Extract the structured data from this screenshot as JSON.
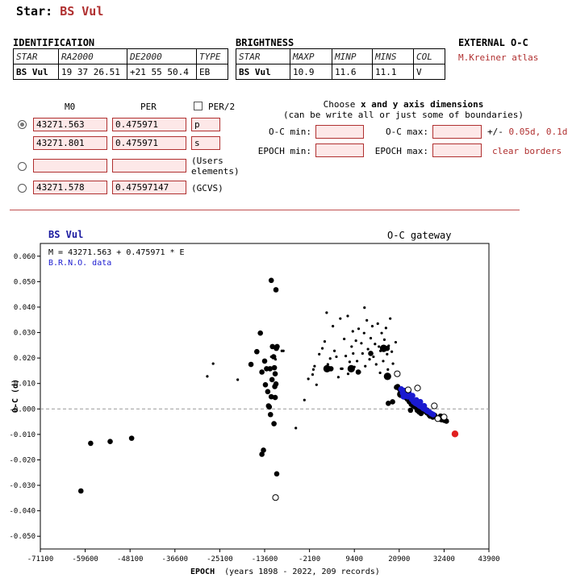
{
  "header": {
    "prefix": "Star:",
    "star_name": "BS Vul"
  },
  "identification": {
    "title": "IDENTIFICATION",
    "headers": [
      "STAR",
      "RA2000",
      "DE2000",
      "TYPE"
    ],
    "values": [
      "BS Vul",
      "19 37 26.51",
      "+21 55 50.4",
      "EB"
    ]
  },
  "brightness": {
    "title": "BRIGHTNESS",
    "headers": [
      "STAR",
      "MAXP",
      "MINP",
      "MINS",
      "COL"
    ],
    "values": [
      "BS Vul",
      "10.9",
      "11.6",
      "11.1",
      "V"
    ]
  },
  "external": {
    "title": "EXTERNAL O-C",
    "link": "M.Kreiner atlas"
  },
  "elements": {
    "col_m0": "M0",
    "col_per": "PER",
    "per2_label": "PER/2",
    "per2_checked": false,
    "selected_row": 0,
    "rows": [
      {
        "m0": "43271.563",
        "per": "0.475971",
        "tag": "p",
        "tag_is_field": true,
        "has_radio": true
      },
      {
        "m0": "43271.801",
        "per": "0.475971",
        "tag": "s",
        "tag_is_field": true,
        "has_radio": false
      },
      {
        "m0": "",
        "per": "",
        "tag": "(Users elements)",
        "tag_is_field": false,
        "has_radio": true
      },
      {
        "m0": "43271.578",
        "per": "0.47597147",
        "tag": "(GCVS)",
        "tag_is_field": false,
        "has_radio": true
      }
    ]
  },
  "axis_form": {
    "title_pre": "Choose ",
    "title_bold": "x and y axis dimensions",
    "subtitle": "(can be write all or just some of boundaries)",
    "oc_min_label": "O-C min:",
    "oc_max_label": "O-C max:",
    "epoch_min_label": "EPOCH min:",
    "epoch_max_label": "EPOCH max:",
    "oc_min": "",
    "oc_max": "",
    "epoch_min": "",
    "epoch_max": "",
    "pm_label": "+/-",
    "pm_opt1": "0.05d",
    "pm_sep": ",",
    "pm_opt2": "0.1d",
    "clear_label": "clear borders"
  },
  "plot": {
    "star": "BS Vul",
    "gateway": "O-C gateway",
    "formula": "M = 43271.563 + 0.475971 * E",
    "source": "B.R.N.O. data",
    "ylabel": "O-C (d)",
    "xlabel_bold": "EPOCH",
    "xlabel_rest": "(years 1898 - 2022, 209 records)"
  },
  "chart_data": {
    "type": "scatter",
    "xlim": [
      -71100,
      43900
    ],
    "ylim": [
      -0.055,
      0.065
    ],
    "xticks": [
      -71100,
      -59600,
      -48100,
      -36600,
      -25100,
      -13600,
      -2100,
      9400,
      20900,
      32400,
      43900
    ],
    "xtick_labels": [
      "-71100",
      "-59600",
      "-48100",
      "-36600",
      "-25100",
      "-13600",
      "-2100",
      "9400",
      "20900",
      "32400",
      "43900"
    ],
    "yticks": [
      -0.05,
      -0.04,
      -0.03,
      -0.02,
      -0.01,
      0.0,
      0.01,
      0.02,
      0.03,
      0.04,
      0.05,
      0.06
    ],
    "ytick_labels": [
      "-0.050",
      "-0.040",
      "-0.030",
      "-0.020",
      "-0.010",
      "-0.000",
      "0.010",
      "0.020",
      "0.030",
      "0.040",
      "0.050",
      "0.060"
    ],
    "zero_line": true,
    "colors": {
      "black": "#000000",
      "blue": "#1a1ad0",
      "red": "#e02020"
    },
    "series": [
      {
        "style": "small-dot",
        "color": "black",
        "points": [
          [
            -26800,
            0.0178
          ],
          [
            -28300,
            0.0128
          ],
          [
            -20500,
            0.0115
          ],
          [
            -8800,
            0.0228
          ],
          [
            -5600,
            -0.0075
          ],
          [
            -3400,
            0.0035
          ],
          [
            -1300,
            0.0135
          ],
          [
            -1100,
            0.0155
          ],
          [
            -800,
            0.0168
          ],
          [
            400,
            0.0215
          ],
          [
            1200,
            0.0238
          ],
          [
            1800,
            0.0265
          ],
          [
            2300,
            0.0378
          ],
          [
            2600,
            0.0175
          ],
          [
            3200,
            0.0198
          ],
          [
            3900,
            0.0325
          ],
          [
            4300,
            0.0228
          ],
          [
            4800,
            0.0205
          ],
          [
            5300,
            0.0125
          ],
          [
            5800,
            0.0355
          ],
          [
            6300,
            0.0158
          ],
          [
            6800,
            0.0275
          ],
          [
            7200,
            0.0208
          ],
          [
            7700,
            0.0365
          ],
          [
            8200,
            0.0185
          ],
          [
            8700,
            0.0245
          ],
          [
            9100,
            0.0218
          ],
          [
            9400,
            0.0165
          ],
          [
            9800,
            0.0268
          ],
          [
            10100,
            0.0188
          ],
          [
            10500,
            0.0315
          ],
          [
            10800,
            0.0145
          ],
          [
            11200,
            0.0258
          ],
          [
            11500,
            0.0218
          ],
          [
            11900,
            0.0298
          ],
          [
            12200,
            0.0168
          ],
          [
            12600,
            0.0348
          ],
          [
            12900,
            0.0235
          ],
          [
            13300,
            0.0195
          ],
          [
            13600,
            0.0278
          ],
          [
            14000,
            0.0325
          ],
          [
            14300,
            0.0205
          ],
          [
            14700,
            0.0255
          ],
          [
            15000,
            0.0175
          ],
          [
            15400,
            0.0335
          ],
          [
            15700,
            0.0245
          ],
          [
            16100,
            0.0228
          ],
          [
            16400,
            0.0298
          ],
          [
            16800,
            0.0188
          ],
          [
            17100,
            0.0272
          ],
          [
            17500,
            0.0318
          ],
          [
            17800,
            0.0215
          ],
          [
            18200,
            0.0248
          ],
          [
            18600,
            0.0355
          ],
          [
            19000,
            0.0225
          ],
          [
            19300,
            0.0178
          ],
          [
            20000,
            0.0262
          ],
          [
            12000,
            0.0398
          ],
          [
            9000,
            0.0305
          ],
          [
            6000,
            0.0158
          ],
          [
            16000,
            0.0142
          ],
          [
            18000,
            0.0155
          ],
          [
            -10800,
            0.0195
          ],
          [
            -11900,
            0.0205
          ],
          [
            -12100,
            0.0158
          ],
          [
            -9200,
            0.0228
          ],
          [
            -2400,
            0.0118
          ],
          [
            -300,
            0.0095
          ],
          [
            7800,
            0.0138
          ]
        ]
      },
      {
        "style": "medium-dot",
        "color": "black",
        "points": [
          [
            -60700,
            -0.0322
          ],
          [
            -58200,
            -0.0135
          ],
          [
            -53200,
            -0.0128
          ],
          [
            -47700,
            -0.0115
          ],
          [
            -17100,
            0.0175
          ],
          [
            -15600,
            0.0225
          ],
          [
            -14700,
            0.0298
          ],
          [
            -14300,
            0.0145
          ],
          [
            -13600,
            0.0188
          ],
          [
            -13400,
            0.0095
          ],
          [
            -13100,
            0.0158
          ],
          [
            -12800,
            0.0068
          ],
          [
            -12400,
            0.0008
          ],
          [
            -12100,
            -0.0022
          ],
          [
            -11600,
            0.0245
          ],
          [
            -11300,
            0.0205
          ],
          [
            -11100,
            0.0162
          ],
          [
            -11000,
            0.0088
          ],
          [
            -10900,
            0.0045
          ],
          [
            -10700,
            0.0098
          ],
          [
            -10600,
            0.0238
          ],
          [
            -10500,
            -0.0255
          ],
          [
            -11200,
            -0.0058
          ],
          [
            -14300,
            -0.0178
          ],
          [
            -13900,
            -0.0162
          ],
          [
            -11900,
            0.0505
          ],
          [
            -10700,
            0.0468
          ],
          [
            -12200,
            0.0158
          ],
          [
            -10900,
            0.0138
          ],
          [
            -11700,
            0.0115
          ],
          [
            -10400,
            0.0245
          ],
          [
            -11900,
            0.0048
          ],
          [
            -12600,
            0.0012
          ],
          [
            3400,
            0.0158
          ],
          [
            10400,
            0.0145
          ],
          [
            13600,
            0.0218
          ],
          [
            17800,
            0.0238
          ],
          [
            18100,
            0.0022
          ],
          [
            19200,
            0.0028
          ],
          [
            20500,
            0.0088
          ],
          [
            21000,
            0.0078
          ],
          [
            21600,
            0.0068
          ],
          [
            22100,
            0.0058
          ],
          [
            22500,
            0.0045
          ],
          [
            23000,
            0.0038
          ],
          [
            23500,
            0.0028
          ],
          [
            24000,
            0.0018
          ],
          [
            24500,
            0.0012
          ],
          [
            25000,
            0.0008
          ],
          [
            25500,
            -0.0005
          ],
          [
            26000,
            -0.0012
          ],
          [
            26500,
            -0.0018
          ],
          [
            27000,
            0.0005
          ],
          [
            27500,
            -0.0008
          ],
          [
            28000,
            -0.0015
          ],
          [
            28500,
            -0.0022
          ],
          [
            29000,
            -0.0028
          ],
          [
            29500,
            -0.0032
          ],
          [
            30000,
            -0.0025
          ],
          [
            30500,
            -0.0035
          ],
          [
            31000,
            -0.0038
          ],
          [
            31500,
            -0.0028
          ],
          [
            32000,
            -0.0042
          ],
          [
            32500,
            -0.0045
          ],
          [
            33000,
            -0.0048
          ],
          [
            23800,
            -0.0005
          ],
          [
            26200,
            -0.0008
          ],
          [
            28800,
            -0.0028
          ],
          [
            31700,
            -0.0042
          ],
          [
            22300,
            0.0072
          ],
          [
            24800,
            0.0032
          ],
          [
            20200,
            0.0085
          ]
        ]
      },
      {
        "style": "large-dot",
        "color": "black",
        "points": [
          [
            2400,
            0.0158
          ],
          [
            8600,
            0.0158
          ],
          [
            16900,
            0.0238
          ],
          [
            17900,
            0.0128
          ],
          [
            21300,
            0.0058
          ],
          [
            25900,
            0.0015
          ],
          [
            27900,
            -0.0008
          ],
          [
            31800,
            -0.0038
          ]
        ]
      },
      {
        "style": "blue-dot",
        "color": "blue",
        "points": [
          [
            21400,
            0.0078
          ],
          [
            21800,
            0.0062
          ],
          [
            22200,
            0.0072
          ],
          [
            22700,
            0.0058
          ],
          [
            23100,
            0.0048
          ],
          [
            23600,
            0.0055
          ],
          [
            24100,
            0.0038
          ],
          [
            24600,
            0.0028
          ],
          [
            25100,
            0.0022
          ],
          [
            25600,
            0.0018
          ],
          [
            26100,
            0.0012
          ],
          [
            26600,
            0.0008
          ],
          [
            27100,
            0.0002
          ],
          [
            27600,
            -0.0002
          ],
          [
            28100,
            -0.0008
          ],
          [
            28600,
            -0.0012
          ],
          [
            29100,
            -0.0018
          ],
          [
            29600,
            -0.0022
          ],
          [
            22000,
            0.0048
          ],
          [
            23300,
            0.0065
          ],
          [
            24300,
            0.0052
          ],
          [
            25300,
            0.0035
          ],
          [
            26300,
            0.0028
          ],
          [
            27300,
            0.0012
          ]
        ]
      },
      {
        "style": "open-circle",
        "color": "black",
        "points": [
          [
            -10800,
            -0.0348
          ],
          [
            20400,
            0.0138
          ],
          [
            23200,
            0.0075
          ],
          [
            25600,
            0.0082
          ],
          [
            30800,
            -0.0038
          ],
          [
            32400,
            -0.0032
          ],
          [
            29900,
            0.0012
          ]
        ]
      },
      {
        "style": "red-dot",
        "color": "red",
        "points": [
          [
            35200,
            -0.0098
          ]
        ]
      }
    ]
  }
}
